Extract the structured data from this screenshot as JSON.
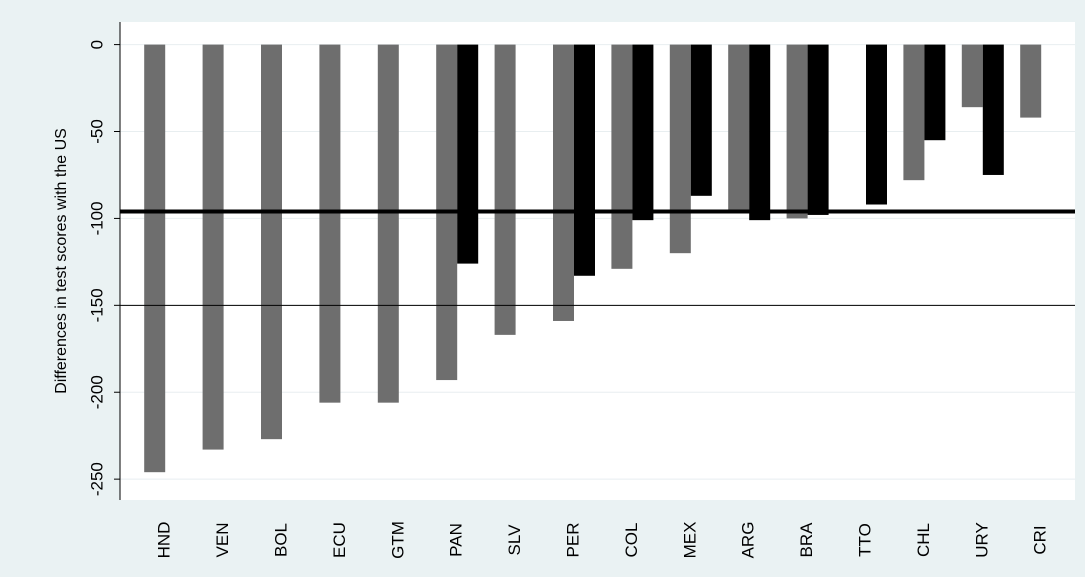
{
  "chart_data": {
    "type": "bar",
    "y_label": "Differences in test scores with the US",
    "categories": [
      "HND",
      "VEN",
      "BOL",
      "ECU",
      "GTM",
      "PAN",
      "SLV",
      "PER",
      "COL",
      "MEX",
      "ARG",
      "BRA",
      "TTO",
      "CHL",
      "URY",
      "CRI"
    ],
    "series": [
      {
        "color": "#6e6e6e",
        "values": [
          -246,
          -233,
          -227,
          -206,
          -206,
          -193,
          -167,
          -159,
          -129,
          -120,
          -95,
          -100,
          null,
          -78,
          -36,
          -42
        ]
      },
      {
        "color": "#000000",
        "values": [
          null,
          null,
          null,
          null,
          null,
          -126,
          null,
          -133,
          -101,
          -87,
          -101,
          -98,
          -92,
          -55,
          -75,
          null
        ]
      }
    ],
    "ylim": [
      -262,
      13
    ],
    "yticks": [
      0,
      -50,
      -100,
      -150,
      -200,
      -250
    ],
    "grid": true,
    "reference_lines": [
      {
        "value": -96,
        "style": "thick"
      },
      {
        "value": -150,
        "style": "thin"
      }
    ]
  }
}
